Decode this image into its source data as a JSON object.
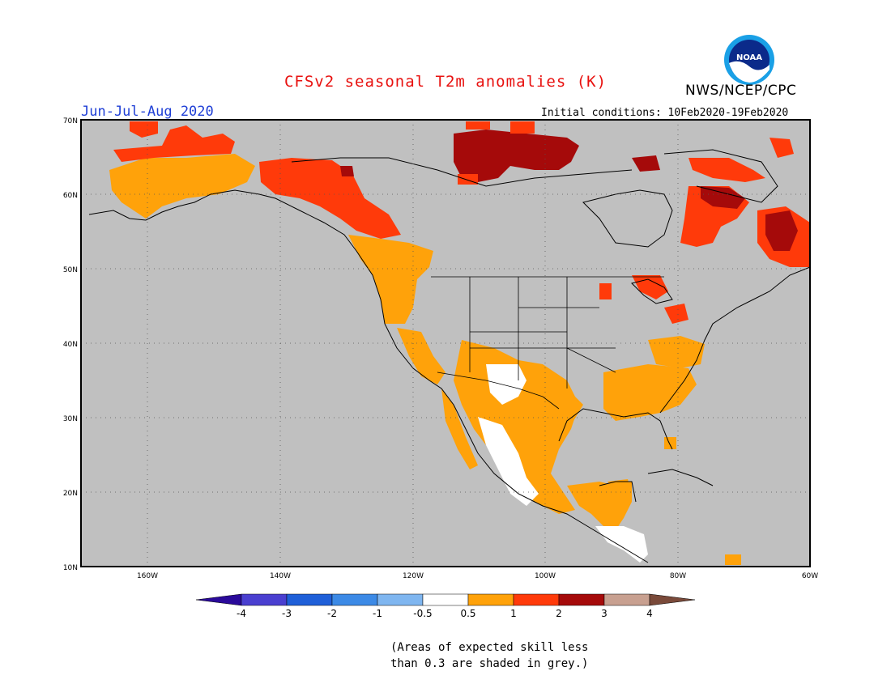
{
  "header": {
    "title": "CFSv2 seasonal T2m anomalies (K)",
    "season": "Jun-Jul-Aug 2020",
    "organization": "NWS/NCEP/CPC",
    "initial_conditions": "Initial conditions: 10Feb2020-19Feb2020",
    "logo_text": "NOAA"
  },
  "map": {
    "lat_labels": [
      "70N",
      "60N",
      "50N",
      "40N",
      "30N",
      "20N",
      "10N"
    ],
    "lon_labels": [
      "160W",
      "140W",
      "120W",
      "100W",
      "80W",
      "60W"
    ],
    "background_color": "#c0c0c0"
  },
  "legend": {
    "labels": [
      "-4",
      "-3",
      "-2",
      "-1",
      "-0.5",
      "0.5",
      "1",
      "2",
      "3",
      "4"
    ],
    "colors": [
      "#2a0a9a",
      "#4a3fd0",
      "#1f5fd8",
      "#3c8ae6",
      "#7fb6f0",
      "#ffffff",
      "#ffa20a",
      "#ff3a0a",
      "#a50a0a",
      "#c8a090",
      "#7a4a3a"
    ],
    "note_line1": "(Areas of expected skill less",
    "note_line2": "than 0.3 are shaded in grey.)"
  }
}
